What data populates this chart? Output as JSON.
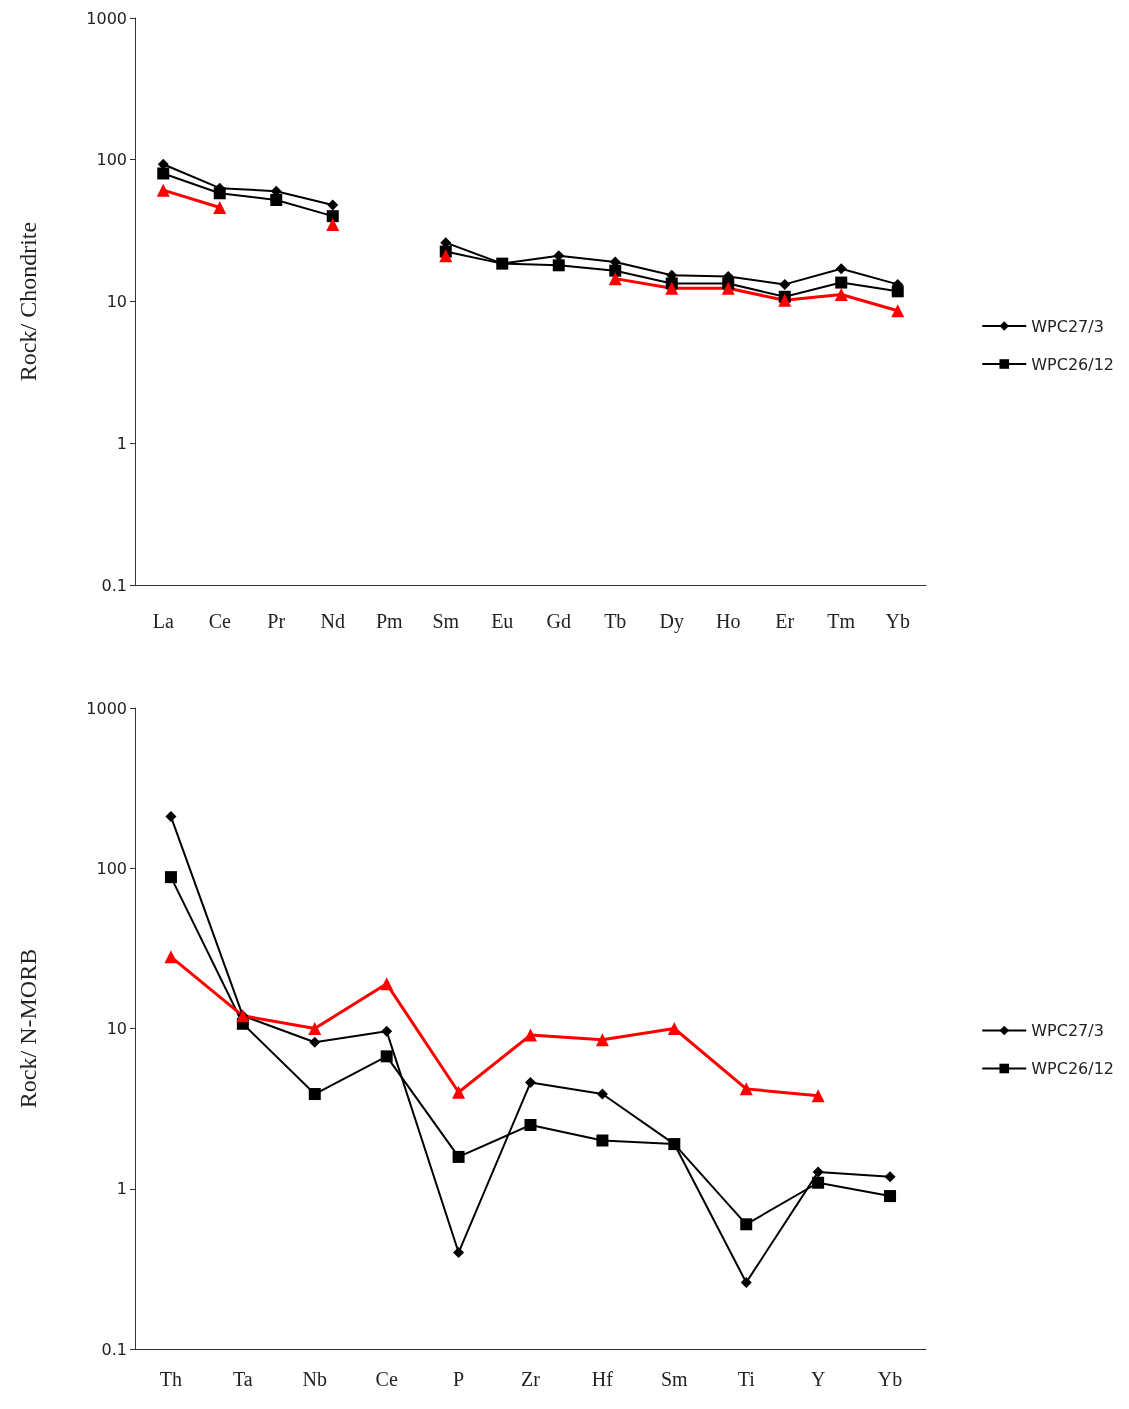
{
  "chart_data": [
    {
      "type": "line",
      "ylabel": "Rock/ Chondrite",
      "log": true,
      "ylim": [
        0.1,
        1000
      ],
      "yticks": [
        0.1,
        1,
        10,
        100,
        1000
      ],
      "grid": false,
      "legend": "right",
      "line_style": "solid",
      "categories": [
        "La",
        "Ce",
        "Pr",
        "Nd",
        "Pm",
        "Sm",
        "Eu",
        "Gd",
        "Tb",
        "Dy",
        "Ho",
        "Er",
        "Tm",
        "Yb"
      ],
      "series": [
        {
          "name": "WPC27/3",
          "color": "#000000",
          "marker": "diamond",
          "values": [
            93,
            63,
            60,
            48,
            null,
            26,
            18.5,
            21,
            19,
            15.3,
            15,
            13.2,
            17,
            13.2
          ]
        },
        {
          "name": "WPC26/12",
          "color": "#000000",
          "marker": "square",
          "values": [
            80,
            58,
            52,
            40,
            null,
            22.5,
            18.5,
            18,
            16.5,
            13.4,
            13.4,
            10.8,
            13.6,
            11.8
          ]
        },
        {
          "color": "#ff0000",
          "marker": "triangle",
          "values": [
            61,
            46,
            null,
            35,
            null,
            21,
            null,
            null,
            14.5,
            12.4,
            12.4,
            10.2,
            11.2,
            8.6
          ]
        }
      ]
    },
    {
      "type": "line",
      "ylabel": "Rock/ N-MORB",
      "log": true,
      "ylim": [
        0.1,
        1000
      ],
      "yticks": [
        0.1,
        1,
        10,
        100,
        1000
      ],
      "grid": false,
      "legend": "right",
      "line_style": "solid",
      "categories": [
        "Th",
        "Ta",
        "Nb",
        "Ce",
        "P",
        "Zr",
        "Hf",
        "Sm",
        "Ti",
        "Y",
        "Yb"
      ],
      "series": [
        {
          "name": "WPC27/3",
          "color": "#000000",
          "marker": "diamond",
          "values": [
            210,
            12,
            8.2,
            9.6,
            0.4,
            4.6,
            3.9,
            1.9,
            0.26,
            1.27,
            1.19
          ]
        },
        {
          "name": "WPC26/12",
          "color": "#000000",
          "marker": "square",
          "values": [
            88,
            10.7,
            3.9,
            6.7,
            1.58,
            2.5,
            2,
            1.9,
            0.6,
            1.09,
            0.9
          ]
        },
        {
          "color": "#ff0000",
          "marker": "triangle",
          "values": [
            28,
            12,
            10,
            19,
            4,
            9.1,
            8.5,
            10,
            4.2,
            3.8,
            null
          ]
        }
      ]
    }
  ]
}
